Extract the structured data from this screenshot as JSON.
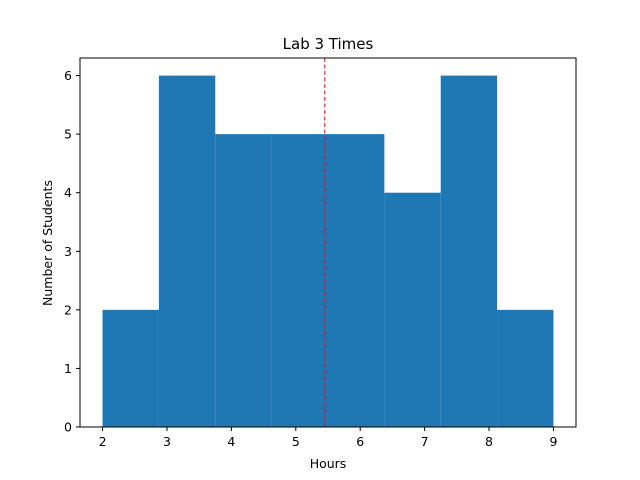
{
  "chart_data": {
    "type": "bar",
    "subtype": "histogram",
    "title": "Lab 3 Times",
    "xlabel": "Hours",
    "ylabel": "Number of Students",
    "bins": [
      {
        "x0": 2.0,
        "x1": 2.875,
        "count": 2
      },
      {
        "x0": 2.875,
        "x1": 3.75,
        "count": 6
      },
      {
        "x0": 3.75,
        "x1": 4.625,
        "count": 5
      },
      {
        "x0": 4.625,
        "x1": 5.5,
        "count": 5
      },
      {
        "x0": 5.5,
        "x1": 6.375,
        "count": 5
      },
      {
        "x0": 6.375,
        "x1": 7.25,
        "count": 4
      },
      {
        "x0": 7.25,
        "x1": 8.125,
        "count": 6
      },
      {
        "x0": 8.125,
        "x1": 9.0,
        "count": 2
      }
    ],
    "mean_line": {
      "x": 5.45,
      "color": "#ff0000",
      "style": "dashed"
    },
    "xlim": [
      1.65,
      9.35
    ],
    "ylim": [
      0,
      6.3
    ],
    "xticks": [
      "2",
      "3",
      "4",
      "5",
      "6",
      "7",
      "8",
      "9"
    ],
    "yticks": [
      "0",
      "1",
      "2",
      "3",
      "4",
      "5",
      "6"
    ],
    "bar_color": "#1f77b4",
    "grid": false,
    "legend": "none"
  }
}
